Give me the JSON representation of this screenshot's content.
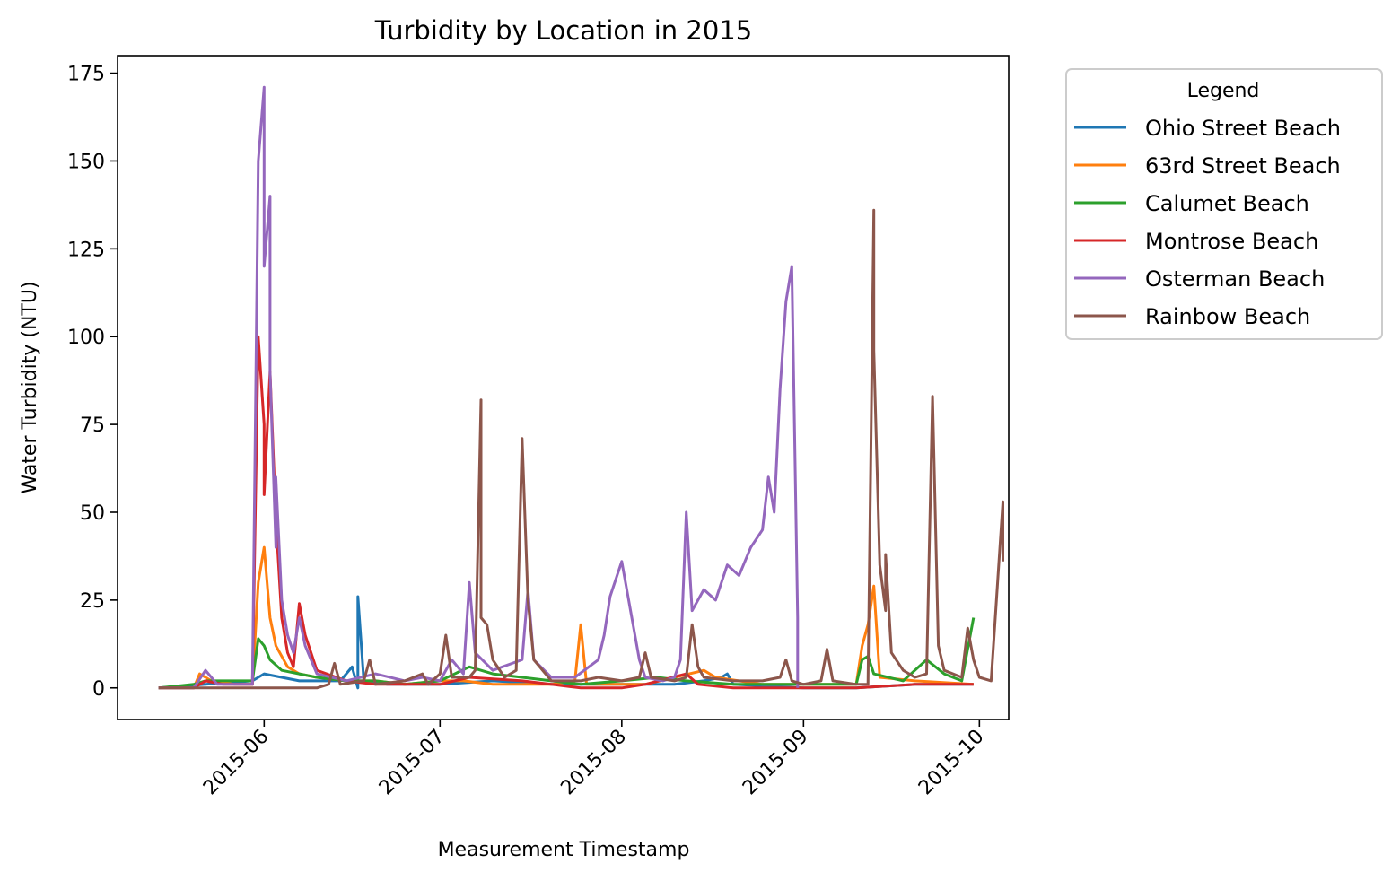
{
  "chart_data": {
    "type": "line",
    "title": "Turbidity by Location in 2015",
    "xlabel": "Measurement Timestamp",
    "ylabel": "Water Turbidity (NTU)",
    "xlim": [
      "2015-05-07",
      "2015-10-06"
    ],
    "ylim": [
      -9,
      180
    ],
    "x_ticks": [
      "2015-06",
      "2015-07",
      "2015-08",
      "2015-09",
      "2015-10"
    ],
    "y_ticks": [
      0,
      25,
      50,
      75,
      100,
      125,
      150,
      175
    ],
    "grid": false,
    "legend": {
      "title": "Legend",
      "placement": "outside-right"
    },
    "series": [
      {
        "name": "Ohio Street Beach",
        "color": "#1f77b4",
        "points": [
          [
            "2015-05-14",
            0
          ],
          [
            "2015-05-22",
            1
          ],
          [
            "2015-05-30",
            2
          ],
          [
            "2015-06-01",
            4
          ],
          [
            "2015-06-07",
            2
          ],
          [
            "2015-06-14",
            2
          ],
          [
            "2015-06-16",
            6
          ],
          [
            "2015-06-17",
            0
          ],
          [
            "2015-06-17",
            26
          ],
          [
            "2015-06-18",
            2
          ],
          [
            "2015-06-22",
            1
          ],
          [
            "2015-07-01",
            1
          ],
          [
            "2015-07-10",
            2
          ],
          [
            "2015-07-20",
            1
          ],
          [
            "2015-08-01",
            1
          ],
          [
            "2015-08-10",
            1
          ],
          [
            "2015-08-15",
            2
          ],
          [
            "2015-08-18",
            3
          ],
          [
            "2015-08-19",
            4
          ],
          [
            "2015-08-20",
            1
          ],
          [
            "2015-09-01",
            0
          ],
          [
            "2015-09-10",
            0
          ],
          [
            "2015-09-20",
            1
          ],
          [
            "2015-09-30",
            1
          ]
        ]
      },
      {
        "name": "63rd Street Beach",
        "color": "#ff7f0e",
        "points": [
          [
            "2015-05-14",
            0
          ],
          [
            "2015-05-20",
            0
          ],
          [
            "2015-05-21",
            4
          ],
          [
            "2015-05-23",
            2
          ],
          [
            "2015-05-27",
            1
          ],
          [
            "2015-05-30",
            1
          ],
          [
            "2015-05-31",
            30
          ],
          [
            "2015-06-01",
            40
          ],
          [
            "2015-06-02",
            20
          ],
          [
            "2015-06-03",
            12
          ],
          [
            "2015-06-05",
            6
          ],
          [
            "2015-06-07",
            4
          ],
          [
            "2015-06-10",
            3
          ],
          [
            "2015-06-15",
            2
          ],
          [
            "2015-06-20",
            2
          ],
          [
            "2015-06-25",
            1
          ],
          [
            "2015-07-01",
            2
          ],
          [
            "2015-07-05",
            2
          ],
          [
            "2015-07-10",
            1
          ],
          [
            "2015-07-20",
            1
          ],
          [
            "2015-07-24",
            2
          ],
          [
            "2015-07-25",
            18
          ],
          [
            "2015-07-26",
            1
          ],
          [
            "2015-08-05",
            1
          ],
          [
            "2015-08-15",
            5
          ],
          [
            "2015-08-17",
            3
          ],
          [
            "2015-08-25",
            1
          ],
          [
            "2015-09-05",
            1
          ],
          [
            "2015-09-10",
            1
          ],
          [
            "2015-09-11",
            12
          ],
          [
            "2015-09-12",
            18
          ],
          [
            "2015-09-13",
            29
          ],
          [
            "2015-09-14",
            3
          ],
          [
            "2015-09-20",
            2
          ],
          [
            "2015-09-30",
            1
          ]
        ]
      },
      {
        "name": "Calumet Beach",
        "color": "#2ca02c",
        "points": [
          [
            "2015-05-14",
            0
          ],
          [
            "2015-05-20",
            1
          ],
          [
            "2015-05-22",
            2
          ],
          [
            "2015-05-25",
            2
          ],
          [
            "2015-05-30",
            2
          ],
          [
            "2015-05-31",
            14
          ],
          [
            "2015-06-01",
            12
          ],
          [
            "2015-06-02",
            8
          ],
          [
            "2015-06-04",
            5
          ],
          [
            "2015-06-07",
            4
          ],
          [
            "2015-06-10",
            3
          ],
          [
            "2015-06-15",
            2
          ],
          [
            "2015-06-20",
            2
          ],
          [
            "2015-06-25",
            1
          ],
          [
            "2015-07-01",
            2
          ],
          [
            "2015-07-06",
            6
          ],
          [
            "2015-07-10",
            4
          ],
          [
            "2015-07-15",
            3
          ],
          [
            "2015-07-20",
            2
          ],
          [
            "2015-07-25",
            1
          ],
          [
            "2015-08-01",
            2
          ],
          [
            "2015-08-07",
            3
          ],
          [
            "2015-08-12",
            2
          ],
          [
            "2015-08-20",
            1
          ],
          [
            "2015-08-28",
            1
          ],
          [
            "2015-09-05",
            1
          ],
          [
            "2015-09-10",
            1
          ],
          [
            "2015-09-11",
            8
          ],
          [
            "2015-09-12",
            9
          ],
          [
            "2015-09-13",
            4
          ],
          [
            "2015-09-18",
            2
          ],
          [
            "2015-09-22",
            8
          ],
          [
            "2015-09-25",
            4
          ],
          [
            "2015-09-28",
            2
          ],
          [
            "2015-09-30",
            20
          ]
        ]
      },
      {
        "name": "Montrose Beach",
        "color": "#d62728",
        "points": [
          [
            "2015-05-14",
            0
          ],
          [
            "2015-05-20",
            0
          ],
          [
            "2015-05-22",
            2
          ],
          [
            "2015-05-25",
            1
          ],
          [
            "2015-05-30",
            1
          ],
          [
            "2015-05-31",
            100
          ],
          [
            "2015-06-01",
            75
          ],
          [
            "2015-06-01",
            55
          ],
          [
            "2015-06-02",
            90
          ],
          [
            "2015-06-03",
            48
          ],
          [
            "2015-06-04",
            20
          ],
          [
            "2015-06-05",
            10
          ],
          [
            "2015-06-06",
            6
          ],
          [
            "2015-06-07",
            24
          ],
          [
            "2015-06-08",
            15
          ],
          [
            "2015-06-10",
            5
          ],
          [
            "2015-06-15",
            2
          ],
          [
            "2015-06-20",
            1
          ],
          [
            "2015-06-25",
            1
          ],
          [
            "2015-07-01",
            1
          ],
          [
            "2015-07-06",
            3
          ],
          [
            "2015-07-15",
            2
          ],
          [
            "2015-07-20",
            1
          ],
          [
            "2015-07-25",
            0
          ],
          [
            "2015-08-01",
            0
          ],
          [
            "2015-08-05",
            1
          ],
          [
            "2015-08-12",
            4
          ],
          [
            "2015-08-14",
            1
          ],
          [
            "2015-08-20",
            0
          ],
          [
            "2015-09-01",
            0
          ],
          [
            "2015-09-10",
            0
          ],
          [
            "2015-09-20",
            1
          ],
          [
            "2015-09-30",
            1
          ]
        ]
      },
      {
        "name": "Osterman Beach",
        "color": "#9467bd",
        "points": [
          [
            "2015-05-14",
            0
          ],
          [
            "2015-05-20",
            0
          ],
          [
            "2015-05-22",
            5
          ],
          [
            "2015-05-24",
            1
          ],
          [
            "2015-05-28",
            1
          ],
          [
            "2015-05-30",
            1
          ],
          [
            "2015-05-31",
            150
          ],
          [
            "2015-06-01",
            171
          ],
          [
            "2015-06-01",
            120
          ],
          [
            "2015-06-02",
            140
          ],
          [
            "2015-06-02",
            90
          ],
          [
            "2015-06-03",
            40
          ],
          [
            "2015-06-03",
            60
          ],
          [
            "2015-06-04",
            25
          ],
          [
            "2015-06-05",
            15
          ],
          [
            "2015-06-06",
            10
          ],
          [
            "2015-06-07",
            20
          ],
          [
            "2015-06-08",
            12
          ],
          [
            "2015-06-10",
            4
          ],
          [
            "2015-06-15",
            2
          ],
          [
            "2015-06-20",
            4
          ],
          [
            "2015-06-25",
            2
          ],
          [
            "2015-06-28",
            3
          ],
          [
            "2015-07-01",
            2
          ],
          [
            "2015-07-03",
            8
          ],
          [
            "2015-07-05",
            4
          ],
          [
            "2015-07-06",
            30
          ],
          [
            "2015-07-07",
            10
          ],
          [
            "2015-07-10",
            5
          ],
          [
            "2015-07-15",
            8
          ],
          [
            "2015-07-16",
            28
          ],
          [
            "2015-07-17",
            8
          ],
          [
            "2015-07-20",
            3
          ],
          [
            "2015-07-24",
            3
          ],
          [
            "2015-07-28",
            8
          ],
          [
            "2015-07-29",
            15
          ],
          [
            "2015-07-30",
            26
          ],
          [
            "2015-08-01",
            36
          ],
          [
            "2015-08-04",
            8
          ],
          [
            "2015-08-05",
            3
          ],
          [
            "2015-08-08",
            2
          ],
          [
            "2015-08-10",
            3
          ],
          [
            "2015-08-11",
            8
          ],
          [
            "2015-08-12",
            50
          ],
          [
            "2015-08-13",
            22
          ],
          [
            "2015-08-15",
            28
          ],
          [
            "2015-08-17",
            25
          ],
          [
            "2015-08-19",
            35
          ],
          [
            "2015-08-21",
            32
          ],
          [
            "2015-08-23",
            40
          ],
          [
            "2015-08-25",
            45
          ],
          [
            "2015-08-26",
            60
          ],
          [
            "2015-08-27",
            50
          ],
          [
            "2015-08-28",
            85
          ],
          [
            "2015-08-29",
            110
          ],
          [
            "2015-08-30",
            120
          ],
          [
            "2015-08-31",
            20
          ],
          [
            "2015-08-31",
            0
          ]
        ]
      },
      {
        "name": "Rainbow Beach",
        "color": "#8c564b",
        "points": [
          [
            "2015-05-14",
            0
          ],
          [
            "2015-05-20",
            0
          ],
          [
            "2015-06-03",
            0
          ],
          [
            "2015-06-10",
            0
          ],
          [
            "2015-06-12",
            1
          ],
          [
            "2015-06-13",
            7
          ],
          [
            "2015-06-14",
            1
          ],
          [
            "2015-06-18",
            2
          ],
          [
            "2015-06-19",
            8
          ],
          [
            "2015-06-20",
            1
          ],
          [
            "2015-06-25",
            2
          ],
          [
            "2015-06-28",
            4
          ],
          [
            "2015-06-29",
            1
          ],
          [
            "2015-07-01",
            4
          ],
          [
            "2015-07-02",
            15
          ],
          [
            "2015-07-03",
            3
          ],
          [
            "2015-07-06",
            3
          ],
          [
            "2015-07-07",
            5
          ],
          [
            "2015-07-08",
            82
          ],
          [
            "2015-07-08",
            20
          ],
          [
            "2015-07-09",
            18
          ],
          [
            "2015-07-10",
            8
          ],
          [
            "2015-07-12",
            3
          ],
          [
            "2015-07-14",
            5
          ],
          [
            "2015-07-15",
            71
          ],
          [
            "2015-07-16",
            25
          ],
          [
            "2015-07-17",
            8
          ],
          [
            "2015-07-18",
            6
          ],
          [
            "2015-07-20",
            2
          ],
          [
            "2015-07-25",
            2
          ],
          [
            "2015-07-28",
            3
          ],
          [
            "2015-08-01",
            2
          ],
          [
            "2015-08-04",
            3
          ],
          [
            "2015-08-05",
            10
          ],
          [
            "2015-08-06",
            3
          ],
          [
            "2015-08-10",
            2
          ],
          [
            "2015-08-12",
            3
          ],
          [
            "2015-08-13",
            18
          ],
          [
            "2015-08-14",
            6
          ],
          [
            "2015-08-15",
            3
          ],
          [
            "2015-08-20",
            2
          ],
          [
            "2015-08-25",
            2
          ],
          [
            "2015-08-28",
            3
          ],
          [
            "2015-08-29",
            8
          ],
          [
            "2015-08-30",
            2
          ],
          [
            "2015-09-01",
            1
          ],
          [
            "2015-09-04",
            2
          ],
          [
            "2015-09-05",
            11
          ],
          [
            "2015-09-06",
            2
          ],
          [
            "2015-09-10",
            1
          ],
          [
            "2015-09-12",
            1
          ],
          [
            "2015-09-13",
            136
          ],
          [
            "2015-09-13",
            96
          ],
          [
            "2015-09-14",
            35
          ],
          [
            "2015-09-15",
            22
          ],
          [
            "2015-09-15",
            38
          ],
          [
            "2015-09-16",
            10
          ],
          [
            "2015-09-18",
            5
          ],
          [
            "2015-09-20",
            3
          ],
          [
            "2015-09-22",
            4
          ],
          [
            "2015-09-23",
            83
          ],
          [
            "2015-09-24",
            12
          ],
          [
            "2015-09-25",
            5
          ],
          [
            "2015-09-28",
            3
          ],
          [
            "2015-09-29",
            17
          ],
          [
            "2015-09-30",
            8
          ],
          [
            "2015-10-01",
            3
          ],
          [
            "2015-10-03",
            2
          ],
          [
            "2015-10-05",
            53
          ],
          [
            "2015-10-05",
            36
          ]
        ]
      }
    ]
  }
}
